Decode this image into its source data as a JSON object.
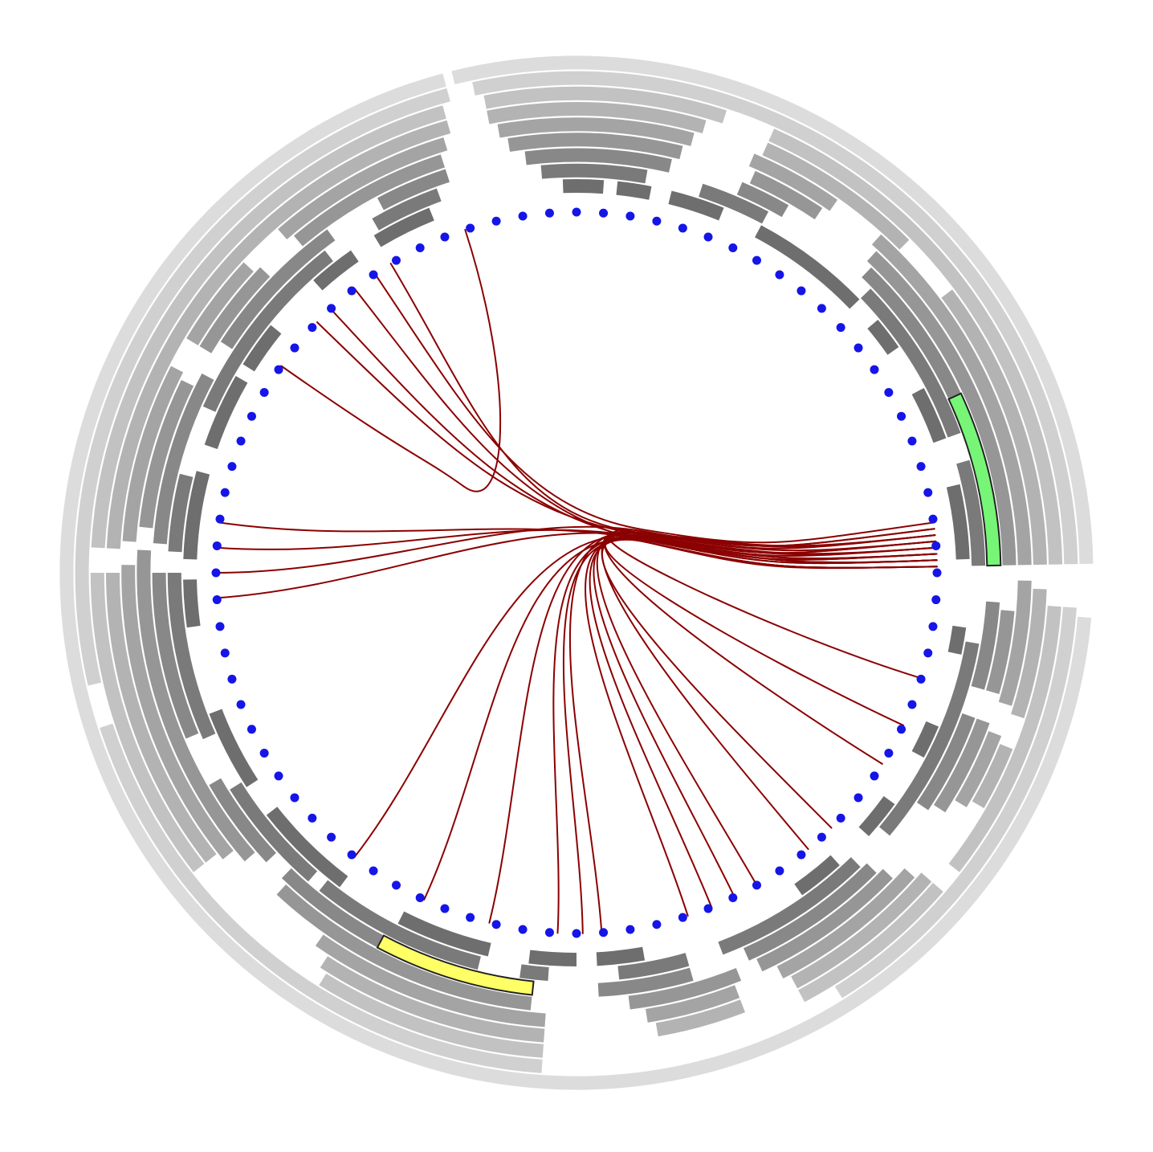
{
  "chart_data": {
    "type": "hierarchical-edge-bundling",
    "node_count": 84,
    "node_color": "#1515e8",
    "edge_color": "#8b0000",
    "highlight_colors": {
      "green": "#77f577",
      "yellow": "#ffff66"
    },
    "ring_shades": [
      "#6e6e6e",
      "#7a7a7a",
      "#888888",
      "#969696",
      "#a4a4a4",
      "#b3b3b3",
      "#c2c2c2",
      "#d0d0d0",
      "#dcdcdc"
    ],
    "rings": [
      {
        "level": 0,
        "segments": [
          [
            -92,
            -86
          ],
          [
            -84,
            -79
          ],
          [
            -76,
            -68
          ],
          [
            -62,
            -44
          ],
          [
            -40,
            -35
          ],
          [
            -28,
            -20
          ],
          [
            -13,
            -2
          ],
          [
            8,
            12
          ],
          [
            23,
            28
          ],
          [
            36,
            42
          ],
          [
            48,
            55
          ],
          [
            80,
            87
          ],
          [
            90,
            97
          ],
          [
            103,
            117
          ],
          [
            127,
            142
          ],
          [
            147,
            159
          ],
          [
            172,
            179
          ],
          [
            182,
            195
          ],
          [
            199,
            210
          ],
          [
            212,
            219
          ],
          [
            228,
            235
          ],
          [
            239,
            248
          ]
        ]
      },
      {
        "level": 1,
        "segments": [
          [
            -95,
            -80
          ],
          [
            -72,
            -62
          ],
          [
            -44,
            -20
          ],
          [
            -16,
            -1
          ],
          [
            10,
            40
          ],
          [
            46,
            69
          ],
          [
            74,
            84
          ],
          [
            94,
            98
          ],
          [
            104,
            129
          ],
          [
            131,
            148
          ],
          [
            156,
            180
          ],
          [
            183,
            194
          ],
          [
            204,
            232
          ],
          [
            240,
            250
          ]
        ]
      },
      {
        "level": 2,
        "segments": [
          [
            -97,
            -77
          ],
          [
            -67,
            -60
          ],
          [
            -46,
            -1
          ],
          [
            4,
            16
          ],
          [
            20,
            34
          ],
          [
            45,
            66
          ],
          [
            74,
            87
          ],
          [
            97,
            134
          ],
          [
            137,
            150
          ],
          [
            157,
            180
          ],
          [
            184,
            208
          ],
          [
            213,
            234
          ],
          [
            242,
            252
          ]
        ]
      },
      {
        "level": 3,
        "segments": [
          [
            -99,
            -76
          ],
          [
            -66,
            -56
          ],
          [
            -47,
            -1
          ],
          [
            5,
            16
          ],
          [
            20,
            33
          ],
          [
            44,
            65
          ],
          [
            68,
            83
          ],
          [
            96,
            133
          ],
          [
            139,
            183
          ],
          [
            186,
            206
          ],
          [
            211,
            224
          ],
          [
            230,
            252
          ]
        ]
      },
      {
        "level": 4,
        "segments": [
          [
            -100,
            -75
          ],
          [
            -67,
            -55
          ],
          [
            -48,
            -1
          ],
          [
            1,
            17
          ],
          [
            21,
            31
          ],
          [
            42,
            63
          ],
          [
            69,
            81
          ],
          [
            94,
            125
          ],
          [
            141,
            181
          ],
          [
            184,
            207
          ],
          [
            211,
            223
          ],
          [
            229,
            253
          ]
        ]
      },
      {
        "level": 5,
        "segments": [
          [
            -101,
            -74
          ],
          [
            -66,
            -45
          ],
          [
            -37,
            -1
          ],
          [
            2,
            18
          ],
          [
            22,
            30
          ],
          [
            41,
            62
          ],
          [
            69,
            80
          ],
          [
            94,
            123
          ],
          [
            142,
            180
          ],
          [
            183,
            254
          ]
        ]
      },
      {
        "level": 6,
        "segments": [
          [
            -101,
            -72
          ],
          [
            -66,
            -1
          ],
          [
            4,
            38
          ],
          [
            41,
            62
          ],
          [
            94,
            122
          ],
          [
            142,
            180
          ],
          [
            183,
            254
          ]
        ]
      },
      {
        "level": 7,
        "segments": [
          [
            -102,
            -1
          ],
          [
            4,
            58
          ],
          [
            94,
            162
          ],
          [
            167,
            255
          ]
        ]
      },
      {
        "level": 8,
        "segments": [
          [
            -104,
            -1
          ],
          [
            5,
            255
          ]
        ]
      }
    ],
    "highlighted_segments": [
      {
        "color": "green",
        "level": 2,
        "range": [
          -25,
          -1
        ]
      },
      {
        "color": "yellow",
        "level": 2,
        "range": [
          96,
          118
        ]
      }
    ],
    "edges": [
      {
        "from": -108,
        "to": -145
      },
      {
        "from": -136,
        "to": -5
      },
      {
        "from": -133,
        "to": -2
      },
      {
        "from": -128,
        "to": -1
      },
      {
        "from": -124,
        "to": -8
      },
      {
        "from": -121,
        "to": -6
      },
      {
        "from": -184,
        "to": -4
      },
      {
        "from": -172,
        "to": -2
      },
      {
        "from": -176,
        "to": -3
      },
      {
        "from": -180,
        "to": -7
      },
      {
        "from": 128,
        "to": -4
      },
      {
        "from": 93,
        "to": -3
      },
      {
        "from": 89,
        "to": -1
      },
      {
        "from": 86,
        "to": -6
      },
      {
        "from": 104,
        "to": -5
      },
      {
        "from": 115,
        "to": -2
      },
      {
        "from": 72,
        "to": -3
      },
      {
        "from": 68,
        "to": -1
      },
      {
        "from": 64,
        "to": -4
      },
      {
        "from": 60,
        "to": -5
      },
      {
        "from": 25,
        "to": -2
      },
      {
        "from": 32,
        "to": -6
      },
      {
        "from": 45,
        "to": -1
      },
      {
        "from": 17,
        "to": -3
      },
      {
        "from": 50,
        "to": -7
      }
    ]
  }
}
